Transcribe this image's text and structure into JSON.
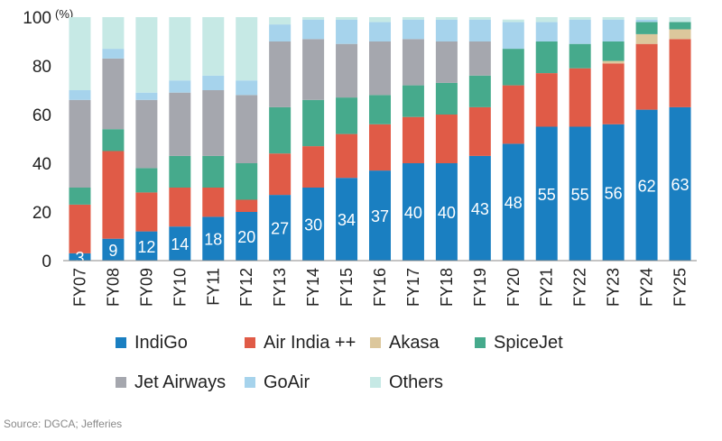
{
  "chart_data": {
    "type": "bar",
    "stacked": true,
    "unit_label": "(%)",
    "categories": [
      "FY07",
      "FY08",
      "FY09",
      "FY10",
      "FY11",
      "FY12",
      "FY13",
      "FY14",
      "FY15",
      "FY16",
      "FY17",
      "FY18",
      "FY19",
      "FY20",
      "FY21",
      "FY22",
      "FY23",
      "FY24",
      "FY25"
    ],
    "ylim": [
      0,
      100
    ],
    "yticks": [
      "0",
      "20",
      "40",
      "60",
      "80",
      "100"
    ],
    "grid": false,
    "legend_position": "bottom",
    "series": [
      {
        "name": "IndiGo",
        "color": "#1a7fc1",
        "values": [
          3,
          9,
          12,
          14,
          18,
          20,
          27,
          30,
          34,
          37,
          40,
          40,
          43,
          48,
          55,
          55,
          56,
          62,
          63
        ]
      },
      {
        "name": "Air India ++",
        "color": "#e05b47",
        "values": [
          20,
          36,
          16,
          16,
          12,
          5,
          17,
          17,
          18,
          19,
          19,
          20,
          20,
          24,
          22,
          24,
          25,
          27,
          28
        ]
      },
      {
        "name": "Akasa",
        "color": "#dcc79c",
        "values": [
          0,
          0,
          0,
          0,
          0,
          0,
          0,
          0,
          0,
          0,
          0,
          0,
          0,
          0,
          0,
          0,
          1,
          4,
          4
        ]
      },
      {
        "name": "SpiceJet",
        "color": "#46aa8c",
        "values": [
          7,
          9,
          10,
          13,
          13,
          15,
          19,
          19,
          15,
          12,
          13,
          13,
          13,
          15,
          13,
          10,
          8,
          5,
          3
        ]
      },
      {
        "name": "Jet Airways",
        "color": "#a5a7ae",
        "values": [
          36,
          29,
          28,
          26,
          27,
          28,
          27,
          25,
          22,
          22,
          19,
          17,
          14,
          0,
          0,
          0,
          0,
          0,
          0
        ]
      },
      {
        "name": "GoAir",
        "color": "#a6d3ec",
        "values": [
          4,
          4,
          3,
          5,
          6,
          6,
          7,
          8,
          10,
          8,
          8,
          9,
          9,
          11,
          8,
          10,
          9,
          1,
          0
        ]
      },
      {
        "name": "Others",
        "color": "#c6e9e5",
        "values": [
          30,
          13,
          31,
          26,
          24,
          26,
          3,
          1,
          1,
          2,
          1,
          1,
          1,
          1,
          2,
          1,
          1,
          1,
          2
        ]
      }
    ],
    "bar_labels": [
      "3",
      "9",
      "12",
      "14",
      "18",
      "20",
      "27",
      "30",
      "34",
      "37",
      "40",
      "40",
      "43",
      "48",
      "55",
      "55",
      "56",
      "62",
      "63"
    ]
  },
  "legend": [
    {
      "label": "IndiGo",
      "color": "#1a7fc1"
    },
    {
      "label": "Air India ++",
      "color": "#e05b47"
    },
    {
      "label": "Akasa",
      "color": "#dcc79c"
    },
    {
      "label": "SpiceJet",
      "color": "#46aa8c"
    },
    {
      "label": "Jet Airways",
      "color": "#a5a7ae"
    },
    {
      "label": "GoAir",
      "color": "#a6d3ec"
    },
    {
      "label": "Others",
      "color": "#c6e9e5"
    }
  ],
  "source": "Source: DGCA; Jefferies"
}
